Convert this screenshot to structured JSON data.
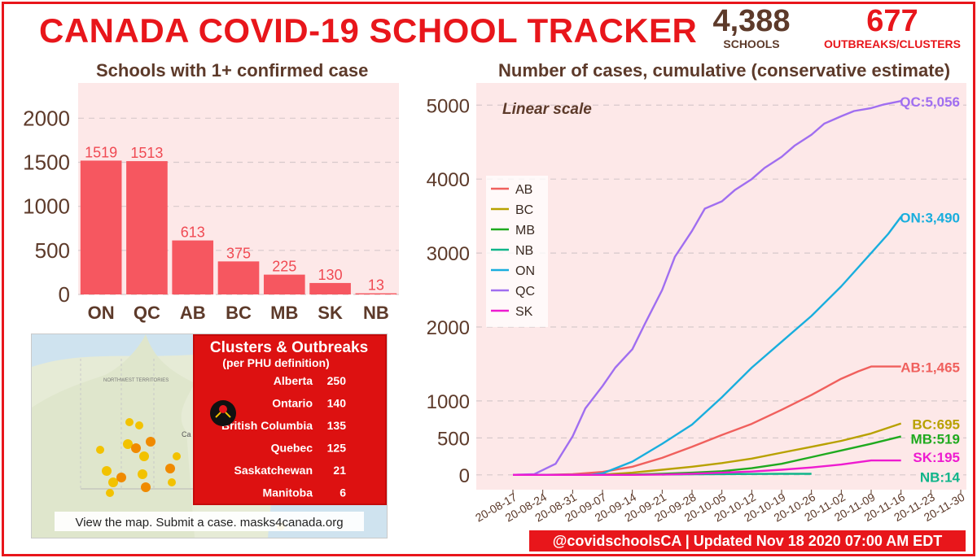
{
  "header": {
    "title": "CANADA COVID-19 SCHOOL TRACKER",
    "schools_count": "4,388",
    "schools_label": "SCHOOLS",
    "outbreaks_count": "677",
    "outbreaks_label": "OUTBREAKS/CLUSTERS"
  },
  "left_chart_title": "Schools with 1+ confirmed case",
  "right_chart_title": "Number of cases, cumulative (conservative estimate)",
  "chart_data": [
    {
      "type": "bar",
      "title": "Schools with 1+ confirmed case",
      "categories": [
        "ON",
        "QC",
        "AB",
        "BC",
        "MB",
        "SK",
        "NB"
      ],
      "values": [
        1519,
        1513,
        613,
        375,
        225,
        130,
        13
      ],
      "ylim": [
        0,
        2400
      ],
      "yticks": [
        0,
        500,
        1000,
        1500,
        2000
      ],
      "grid": true,
      "bar_color": "#f65760",
      "background": "#fde8e8"
    },
    {
      "type": "line",
      "title": "Number of cases, cumulative (conservative estimate)",
      "annotation": "Linear scale",
      "x_ticks": [
        "20-08-17",
        "20-08-24",
        "20-08-31",
        "20-09-07",
        "20-09-14",
        "20-09-21",
        "20-09-28",
        "20-10-05",
        "20-10-12",
        "20-10-19",
        "20-10-26",
        "20-11-02",
        "20-11-09",
        "20-11-16",
        "20-11-23",
        "20-11-30"
      ],
      "yticks": [
        0,
        500,
        1000,
        2000,
        3000,
        4000,
        5000
      ],
      "ylim": [
        -200,
        5300
      ],
      "legend_position": "left",
      "grid": true,
      "background": "#fde8e8",
      "series": [
        {
          "name": "AB",
          "color": "#f0605d",
          "label": "AB:1,465",
          "x": [
            0,
            7,
            14,
            21,
            28,
            35,
            42,
            49,
            56,
            63,
            70,
            77,
            81,
            84,
            87,
            91
          ],
          "values": [
            0,
            0,
            10,
            40,
            110,
            230,
            380,
            540,
            690,
            880,
            1080,
            1300,
            1400,
            1465,
            1465,
            1465
          ]
        },
        {
          "name": "BC",
          "color": "#b8a100",
          "label": "BC:695",
          "x": [
            0,
            14,
            21,
            28,
            35,
            42,
            49,
            56,
            63,
            70,
            77,
            84,
            91
          ],
          "values": [
            0,
            0,
            5,
            30,
            70,
            110,
            160,
            220,
            300,
            380,
            460,
            560,
            695
          ]
        },
        {
          "name": "MB",
          "color": "#1faa1f",
          "label": "MB:519",
          "x": [
            0,
            21,
            28,
            35,
            42,
            49,
            56,
            63,
            70,
            77,
            84,
            91
          ],
          "values": [
            0,
            0,
            5,
            15,
            30,
            50,
            90,
            150,
            240,
            330,
            420,
            519
          ]
        },
        {
          "name": "NB",
          "color": "#10b58a",
          "label": "NB:14",
          "x": [
            35,
            42,
            49,
            56,
            63,
            70
          ],
          "values": [
            5,
            8,
            10,
            12,
            14,
            14
          ]
        },
        {
          "name": "ON",
          "color": "#19aedd",
          "label": "ON:3,490",
          "x": [
            0,
            18,
            21,
            28,
            35,
            42,
            49,
            56,
            63,
            70,
            77,
            84,
            88,
            91
          ],
          "values": [
            0,
            0,
            20,
            180,
            420,
            680,
            1050,
            1450,
            1800,
            2150,
            2550,
            3000,
            3260,
            3490
          ]
        },
        {
          "name": "QC",
          "color": "#a06ef0",
          "label": "QC:5,056",
          "x": [
            0,
            5,
            10,
            14,
            17,
            21,
            24,
            28,
            31,
            35,
            38,
            42,
            45,
            49,
            52,
            56,
            59,
            63,
            66,
            70,
            73,
            77,
            80,
            84,
            87,
            91
          ],
          "values": [
            0,
            10,
            150,
            520,
            900,
            1200,
            1450,
            1700,
            2050,
            2500,
            2950,
            3300,
            3600,
            3700,
            3850,
            4000,
            4150,
            4300,
            4450,
            4600,
            4750,
            4850,
            4920,
            4960,
            5010,
            5056
          ]
        },
        {
          "name": "SK",
          "color": "#ee1bd0",
          "label": "SK:195",
          "x": [
            0,
            28,
            35,
            42,
            49,
            56,
            63,
            70,
            77,
            84,
            91
          ],
          "values": [
            0,
            0,
            5,
            15,
            30,
            45,
            70,
            100,
            140,
            195,
            195
          ]
        }
      ]
    }
  ],
  "map_panel": {
    "title": "Clusters & Outbreaks",
    "subtitle": "(per PHU definition)",
    "rows": [
      {
        "province": "Alberta",
        "count": "250"
      },
      {
        "province": "Ontario",
        "count": "140"
      },
      {
        "province": "British Columbia",
        "count": "135"
      },
      {
        "province": "Quebec",
        "count": "125"
      },
      {
        "province": "Saskatchewan",
        "count": "21"
      },
      {
        "province": "Manitoba",
        "count": "6"
      }
    ],
    "caption": "View the map. Submit a case. masks4canada.org",
    "map_label_1": "NORTHWEST TERRITORIES",
    "map_label_2": "Ca"
  },
  "footer": "@covidschoolsCA | Updated Nov 18 2020 07:00 AM EDT"
}
